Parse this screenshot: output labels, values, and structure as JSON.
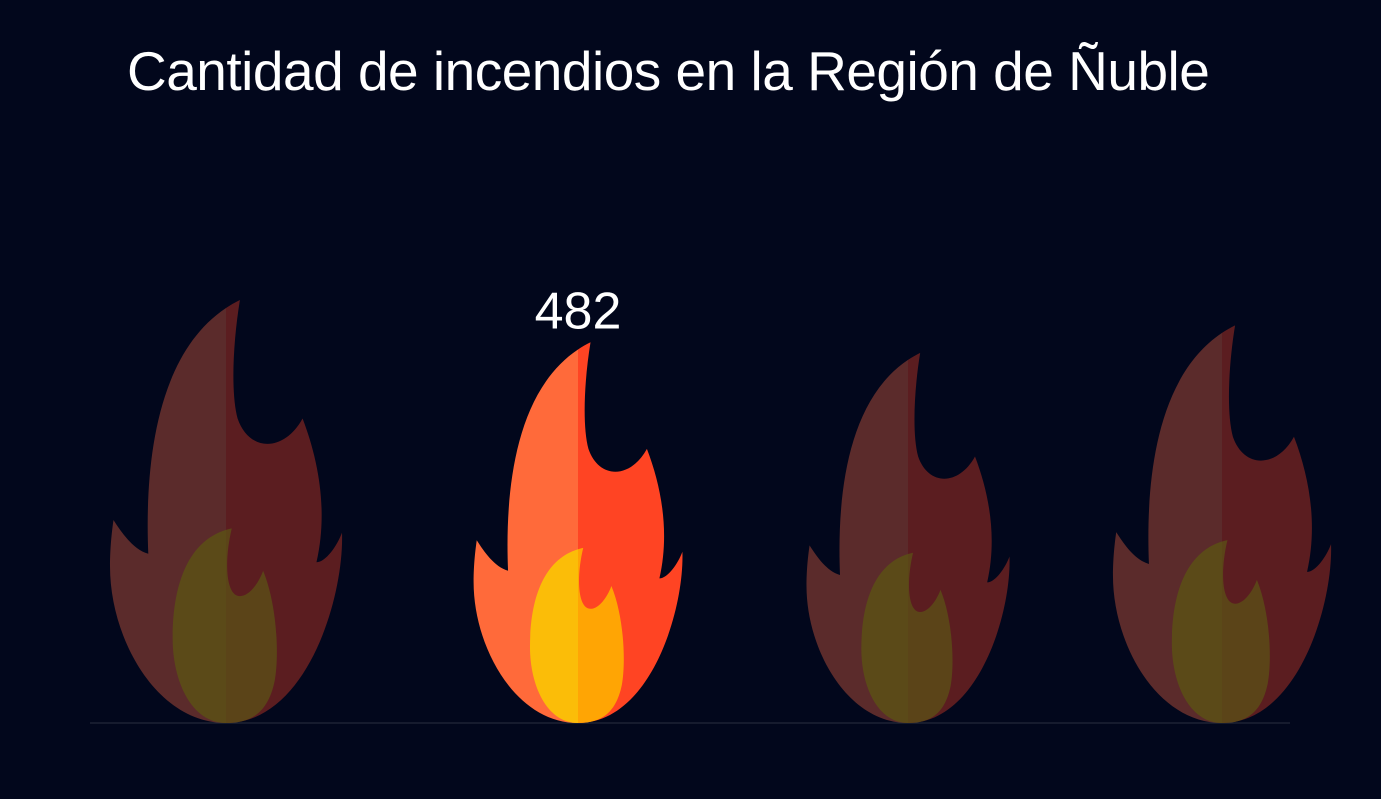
{
  "chart_data": {
    "type": "bar",
    "title": "Cantidad de incendios en la Región de Ñuble",
    "highlighted_index": 1,
    "series": [
      {
        "values": [
          null,
          482,
          null,
          null
        ]
      }
    ],
    "data_labels": [
      "",
      "482",
      "",
      ""
    ],
    "grid": false,
    "legend": "none"
  },
  "colors": {
    "background": "#02071c",
    "title": "#ffffff",
    "flame_left_active": "#ff6a3a",
    "flame_right_active": "#ff4423",
    "core_left_active": "#fbbd08",
    "core_right_active": "#ffa504",
    "flame_left_dim": "#5b2b2b",
    "flame_right_dim": "#5b1d20",
    "core_left_dim": "#5b4a18",
    "core_right_dim": "#5b4418",
    "baseline": "#2a2f3f"
  },
  "icons": {
    "flame": "flame-icon"
  }
}
